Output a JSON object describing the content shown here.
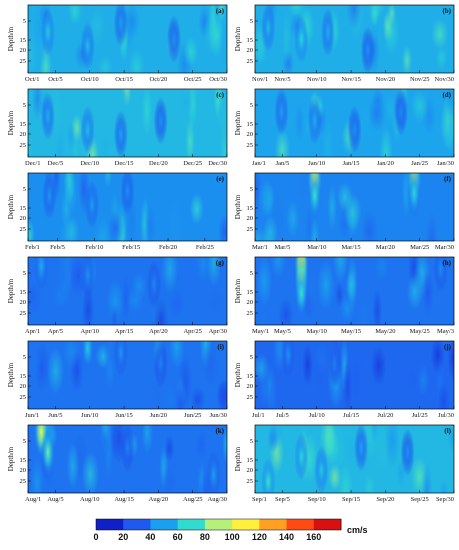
{
  "colors": {
    "colormap": [
      "#1020c8",
      "#1f5af0",
      "#1aa0f0",
      "#30dcd0",
      "#b4f07a",
      "#fff03c",
      "#ffa020",
      "#ff4a14",
      "#d81010"
    ],
    "frame": "#000000"
  },
  "chart_data": {
    "type": "heatmap",
    "ylabel": "Depth/m",
    "y_ticks": [
      "5",
      "15",
      "20",
      "25"
    ],
    "y_range": [
      0,
      30
    ],
    "panels": [
      {
        "id": "a",
        "tag": "(a)",
        "x_ticks": [
          "Oct/1",
          "Oct/5",
          "Oct/10",
          "Oct/15",
          "Oct/20",
          "Oct/25",
          "Oct/30"
        ],
        "days": 30,
        "level": 0.28,
        "blobs": [
          [
            3,
            12,
            60
          ],
          [
            9,
            18,
            55
          ],
          [
            14,
            8,
            45
          ],
          [
            22,
            15,
            40
          ]
        ]
      },
      {
        "id": "b",
        "tag": "(b)",
        "x_ticks": [
          "Nov/1",
          "Nov/5",
          "Nov/10",
          "Nov/15",
          "Nov/20",
          "Nov/25",
          "Nov/30"
        ],
        "days": 30,
        "level": 0.28,
        "blobs": [
          [
            2,
            10,
            55
          ],
          [
            7,
            15,
            65
          ],
          [
            11,
            12,
            50
          ],
          [
            17,
            20,
            40
          ]
        ]
      },
      {
        "id": "c",
        "tag": "(c)",
        "x_ticks": [
          "Dec/1",
          "Dec/5",
          "Dec/10",
          "Dec/15",
          "Dec/20",
          "Dec/25",
          "Dec/30"
        ],
        "days": 30,
        "level": 0.3,
        "blobs": [
          [
            3,
            12,
            50
          ],
          [
            9,
            18,
            55
          ],
          [
            14,
            20,
            45
          ],
          [
            20,
            14,
            40
          ]
        ]
      },
      {
        "id": "d",
        "tag": "(d)",
        "x_ticks": [
          "Jan/1",
          "Jan/5",
          "Jan/10",
          "Jan/15",
          "Jan/20",
          "Jan/25",
          "Jan/30"
        ],
        "days": 30,
        "level": 0.26,
        "blobs": [
          [
            4,
            10,
            45
          ],
          [
            9,
            14,
            50
          ],
          [
            15,
            18,
            40
          ],
          [
            22,
            10,
            38
          ]
        ]
      },
      {
        "id": "e",
        "tag": "(e)",
        "x_ticks": [
          "Feb/1",
          "Feb/5",
          "Feb/10",
          "Feb/15",
          "Feb/20",
          "Feb/25"
        ],
        "days": 28,
        "level": 0.22,
        "blobs": [
          [
            3,
            10,
            42
          ],
          [
            9,
            14,
            45
          ],
          [
            14,
            8,
            40
          ]
        ]
      },
      {
        "id": "f",
        "tag": "(f)",
        "x_ticks": [
          "Mar/1",
          "Mar/5",
          "Mar/10",
          "Mar/15",
          "Mar/20",
          "Mar/25",
          "Mar/30"
        ],
        "days": 30,
        "level": 0.2,
        "blobs": [
          [
            9,
            3,
            110
          ],
          [
            9,
            10,
            70
          ],
          [
            24,
            3,
            105
          ],
          [
            24,
            9,
            65
          ]
        ]
      },
      {
        "id": "g",
        "tag": "(g)",
        "x_ticks": [
          "Apr/1",
          "Apr/5",
          "Apr/10",
          "Apr/15",
          "Apr/20",
          "Apr/25",
          "Apr/30"
        ],
        "days": 30,
        "level": 0.17,
        "blobs": [
          [
            2,
            4,
            50
          ],
          [
            9,
            8,
            40
          ],
          [
            19,
            12,
            38
          ]
        ]
      },
      {
        "id": "h",
        "tag": "(h)",
        "x_ticks": [
          "May/1",
          "May/5",
          "May/10",
          "May/15",
          "May/20",
          "May/25",
          "May/3"
        ],
        "days": 30,
        "level": 0.17,
        "blobs": [
          [
            7,
            3,
            120
          ],
          [
            7,
            10,
            100
          ],
          [
            7,
            16,
            70
          ],
          [
            28,
            5,
            40
          ]
        ]
      },
      {
        "id": "i",
        "tag": "(i)",
        "x_ticks": [
          "Jun/1",
          "Jun/5",
          "Jun/10",
          "Jun/15",
          "Jun/20",
          "Jun/25",
          "Jun/30"
        ],
        "days": 30,
        "level": 0.17,
        "blobs": [
          [
            9,
            3,
            60
          ],
          [
            14,
            5,
            42
          ],
          [
            20,
            10,
            36
          ]
        ]
      },
      {
        "id": "j",
        "tag": "(j)",
        "x_ticks": [
          "Jul/1",
          "Jul/5",
          "Jul/10",
          "Jul/15",
          "Jul/20",
          "Jul/25",
          "Jul/30"
        ],
        "days": 30,
        "level": 0.15,
        "blobs": [
          [
            5,
            6,
            40
          ],
          [
            12,
            10,
            34
          ]
        ]
      },
      {
        "id": "k",
        "tag": "(k)",
        "x_ticks": [
          "Aug/1",
          "Aug/5",
          "Aug/10",
          "Aug/15",
          "Aug/20",
          "Aug/25",
          "Aug/30"
        ],
        "days": 30,
        "level": 0.17,
        "blobs": [
          [
            2,
            3,
            110
          ],
          [
            3,
            12,
            80
          ],
          [
            15,
            10,
            35
          ],
          [
            28,
            22,
            45
          ]
        ]
      },
      {
        "id": "l",
        "tag": "(l)",
        "x_ticks": [
          "Sep/1",
          "Sep/5",
          "Sep/10",
          "Sep/15",
          "Sep/20",
          "Sep/25",
          "Sep/30"
        ],
        "days": 30,
        "level": 0.3,
        "blobs": [
          [
            2,
            25,
            70
          ],
          [
            7,
            14,
            65
          ],
          [
            10,
            20,
            60
          ],
          [
            16,
            10,
            45
          ],
          [
            23,
            12,
            40
          ]
        ]
      }
    ],
    "colorbar": {
      "ticks": [
        "0",
        "20",
        "40",
        "60",
        "80",
        "100",
        "120",
        "140",
        "160"
      ],
      "unit": "cm/s",
      "range": [
        0,
        180
      ]
    }
  }
}
